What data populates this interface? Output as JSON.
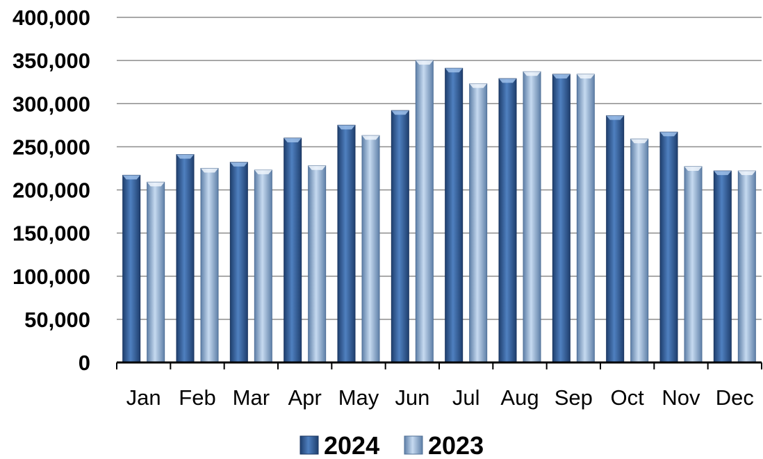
{
  "chart_data": {
    "type": "bar",
    "categories": [
      "Jan",
      "Feb",
      "Mar",
      "Apr",
      "May",
      "Jun",
      "Jul",
      "Aug",
      "Sep",
      "Oct",
      "Nov",
      "Dec"
    ],
    "series": [
      {
        "name": "2024",
        "values": [
          217000,
          241000,
          232000,
          260000,
          275000,
          292000,
          341000,
          329000,
          334000,
          286000,
          267000,
          222000
        ],
        "color": "#2e5a94"
      },
      {
        "name": "2023",
        "values": [
          209000,
          225000,
          223000,
          228000,
          263000,
          350000,
          323000,
          337000,
          334000,
          259000,
          227000,
          222000
        ],
        "color": "#8fb0d8"
      }
    ],
    "ylim": [
      0,
      400000
    ],
    "yticks": [
      "0",
      "50,000",
      "100,000",
      "150,000",
      "200,000",
      "250,000",
      "300,000",
      "350,000",
      "400,000"
    ],
    "title": "",
    "xlabel": "",
    "ylabel": "",
    "grid": true,
    "legend_position": "bottom"
  }
}
